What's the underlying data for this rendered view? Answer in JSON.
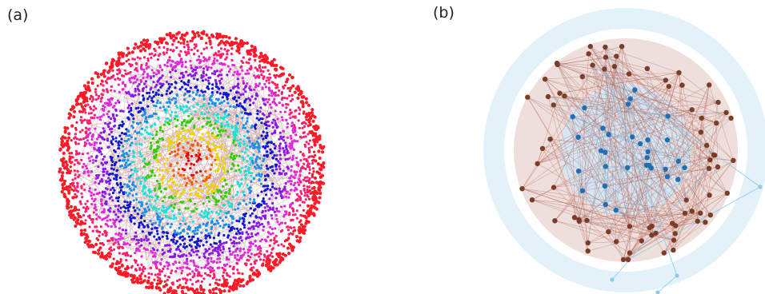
{
  "panel_a": {
    "label": "(a)",
    "ring_colors": [
      "#e60000",
      "#ff5a00",
      "#f0d200",
      "#2ed000",
      "#1fe0d8",
      "#1e90e8",
      "#1018d0",
      "#8a18e8",
      "#e02ad8",
      "#ff1f6a",
      "#ff1a2a"
    ],
    "edge_color": "#c79a9a"
  },
  "panel_b": {
    "label": "(b)",
    "core_color": "#1f6fb2",
    "outer_color": "#7a3d2a",
    "peripheral_color": "#8ecae6",
    "halo_color": "#e3f1f9",
    "band_color": "#eedfdc",
    "core_disc_color": "#d6e6f3"
  }
}
